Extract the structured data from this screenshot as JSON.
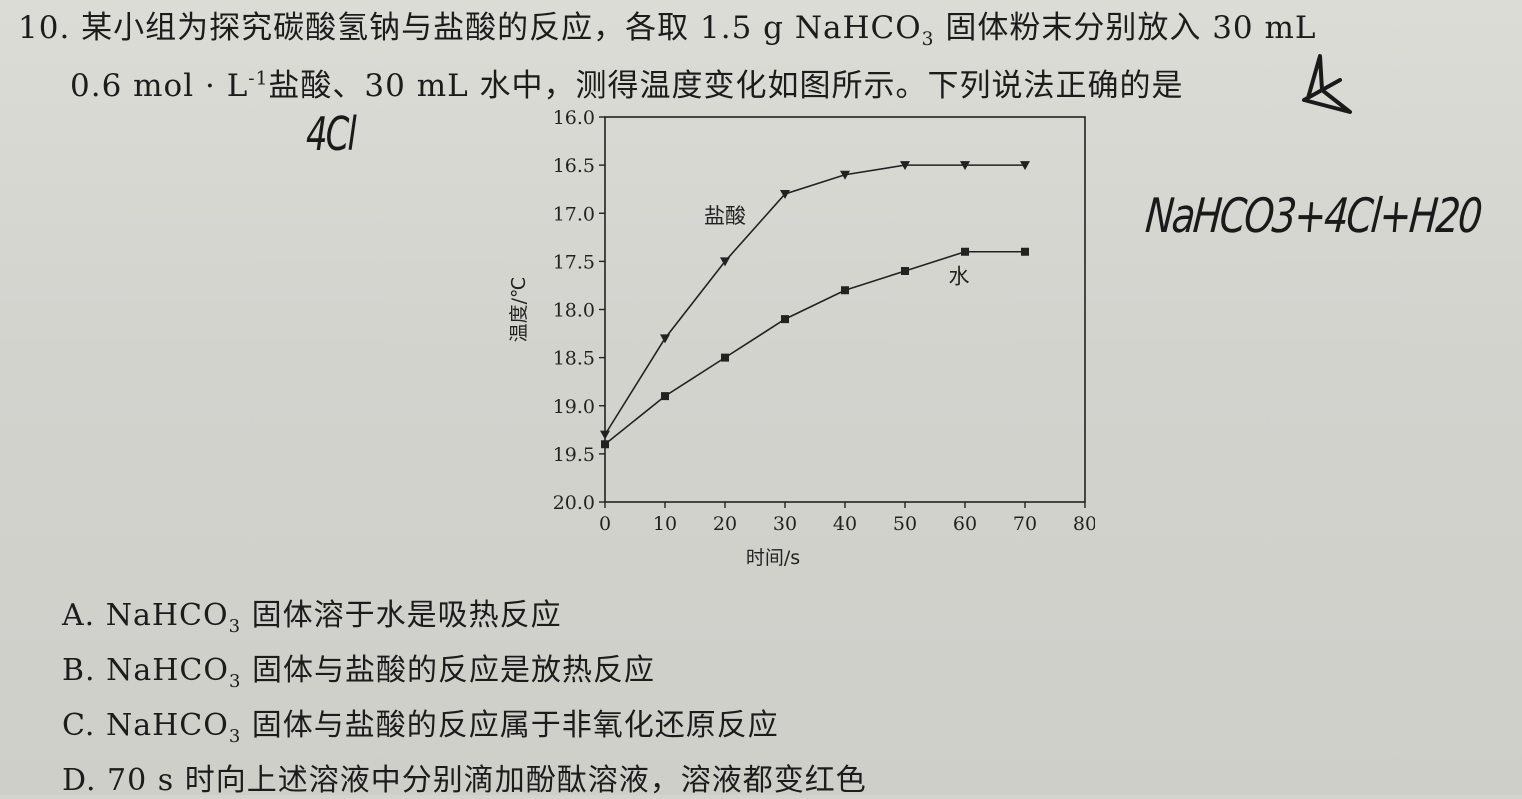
{
  "question": {
    "line1_prefix": "10. 某小组为探究碳酸氢钠与盐酸的反应，各取 1.5 g NaHCO",
    "line1_sub": "3",
    "line1_suffix": " 固体粉末分别放入 30 mL",
    "line2_prefix": "0.6 mol · L",
    "line2_sup": "-1",
    "line2_suffix": "盐酸、30 mL 水中，测得温度变化如图所示。下列说法正确的是"
  },
  "options": {
    "a_prefix": "A. NaHCO",
    "a_sub": "3",
    "a_suffix": " 固体溶于水是吸热反应",
    "b_prefix": "B. NaHCO",
    "b_sub": "3",
    "b_suffix": " 固体与盐酸的反应是放热反应",
    "c_prefix": "C. NaHCO",
    "c_sub": "3",
    "c_suffix": " 固体与盐酸的反应属于非氧化还原反应",
    "d_text": "D. 70 s 时向上述溶液中分别滴加酚酞溶液，溶液都变红色"
  },
  "handwriting": {
    "note_left": "4Cl",
    "note_right": "NaHCO3+4Cl+H20"
  },
  "chart_data": {
    "type": "line",
    "xlabel": "时间/s",
    "ylabel": "温度/℃",
    "xlim": [
      0,
      80
    ],
    "ylim": [
      16.0,
      20.0
    ],
    "y_inverted": true,
    "x_ticks": [
      "0",
      "10",
      "20",
      "30",
      "40",
      "50",
      "60",
      "70",
      "80"
    ],
    "y_ticks": [
      "16.0",
      "16.5",
      "17.0",
      "17.5",
      "18.0",
      "18.5",
      "19.0",
      "19.5",
      "20.0"
    ],
    "grid": false,
    "series": [
      {
        "name": "盐酸",
        "marker": "triangle-down",
        "x": [
          0,
          10,
          20,
          30,
          40,
          50,
          60,
          70
        ],
        "y": [
          19.3,
          18.3,
          17.5,
          16.8,
          16.6,
          16.5,
          16.5,
          16.5
        ]
      },
      {
        "name": "水",
        "marker": "square",
        "x": [
          0,
          10,
          20,
          30,
          40,
          50,
          60,
          70
        ],
        "y": [
          19.4,
          18.9,
          18.5,
          18.1,
          17.8,
          17.6,
          17.4,
          17.4
        ]
      }
    ]
  },
  "colors": {
    "ink": "#222222",
    "paper": "#d6d6d1"
  }
}
